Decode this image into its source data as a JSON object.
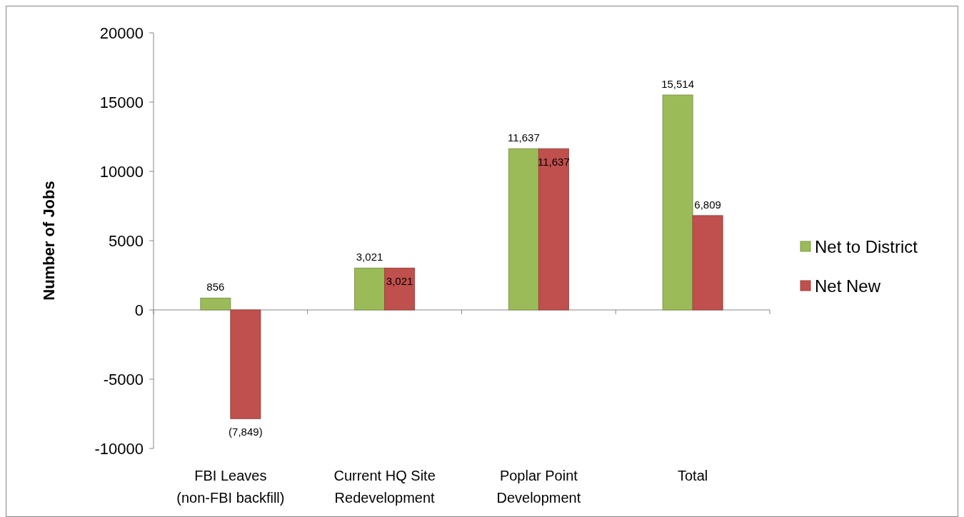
{
  "chart_data": {
    "type": "bar",
    "ylabel": "Number of Jobs",
    "categories": [
      "FBI Leaves\n(non-FBI backfill)",
      "Current HQ Site\nRedevelopment",
      "Poplar Point\nDevelopment",
      "Total"
    ],
    "series": [
      {
        "name": "Net to District",
        "color": "#9bbb59",
        "values": [
          856,
          3021,
          11637,
          15514
        ],
        "value_labels": [
          "856",
          "3,021",
          "11,637",
          "15,514"
        ]
      },
      {
        "name": "Net New",
        "color": "#c0504d",
        "values": [
          -7849,
          3021,
          11637,
          6809
        ],
        "value_labels": [
          "(7,849)",
          "3,021",
          "11,637",
          "6,809"
        ]
      }
    ],
    "ylim": [
      -10000,
      20000
    ],
    "yticks": [
      -10000,
      -5000,
      0,
      5000,
      10000,
      15000,
      20000
    ],
    "legend": "right"
  }
}
